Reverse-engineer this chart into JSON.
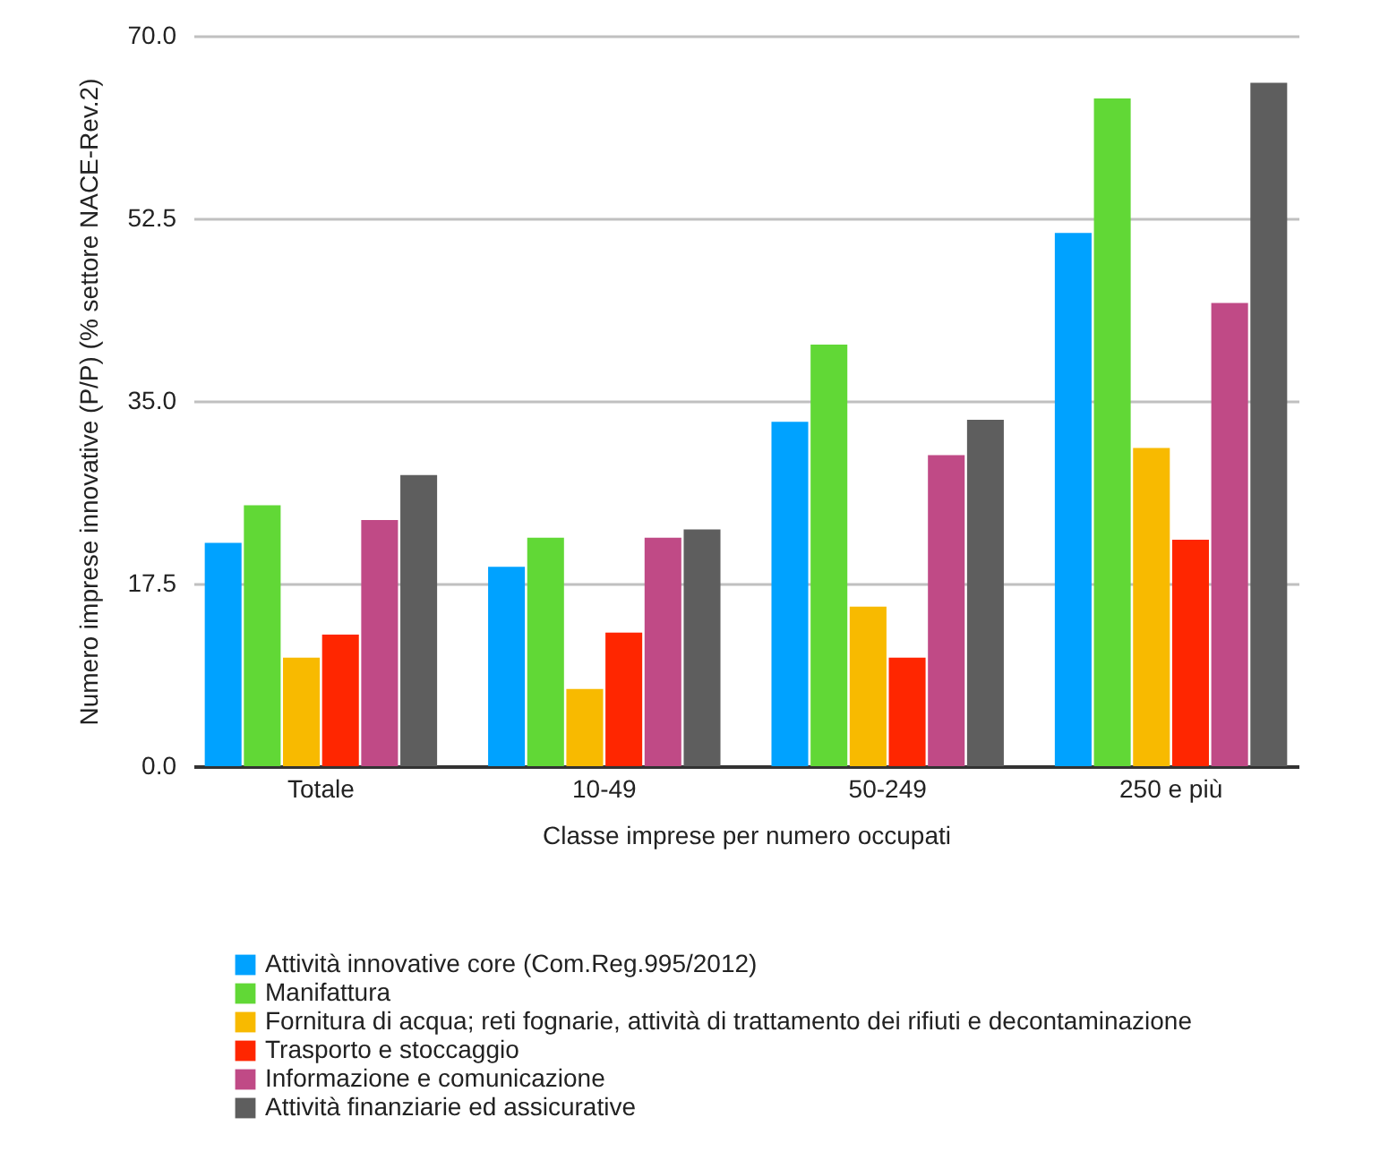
{
  "chart_data": {
    "type": "bar",
    "xlabel": "Classe imprese per numero occupati",
    "ylabel": "Numero imprese innovative (P/P) (% settore NACE-Rev.2)",
    "categories": [
      "Totale",
      "10-49",
      "50-249",
      "250 e più"
    ],
    "series": [
      {
        "name": "Attività innovative core (Com.Reg.995/2012)",
        "color": "#00a2ff",
        "values": [
          21.4,
          19.1,
          33.0,
          51.1
        ]
      },
      {
        "name": "Manifattura",
        "color": "#61d836",
        "values": [
          25.0,
          21.9,
          40.4,
          64.0
        ]
      },
      {
        "name": "Fornitura di acqua; reti fognarie, attività di trattamento dei rifiuti e decontaminazione",
        "color": "#f8ba00",
        "values": [
          10.4,
          7.4,
          15.3,
          30.5
        ]
      },
      {
        "name": "Trasporto e stoccaggio",
        "color": "#ff2600",
        "values": [
          12.6,
          12.8,
          10.4,
          21.7
        ]
      },
      {
        "name": "Informazione e comunicazione",
        "color": "#c04a86",
        "values": [
          23.6,
          21.9,
          29.8,
          44.4
        ]
      },
      {
        "name": "Attività finanziarie ed assicurative",
        "color": "#5e5e5e",
        "values": [
          27.9,
          22.7,
          33.2,
          65.5
        ]
      }
    ],
    "ylim": [
      0,
      70
    ],
    "yticks": [
      {
        "value": 0,
        "label": "0.0"
      },
      {
        "value": 17.5,
        "label": "17.5"
      },
      {
        "value": 35,
        "label": "35.0"
      },
      {
        "value": 52.5,
        "label": "52.5"
      },
      {
        "value": 70,
        "label": "70.0"
      }
    ],
    "grid": "y",
    "legend": "bottom"
  }
}
